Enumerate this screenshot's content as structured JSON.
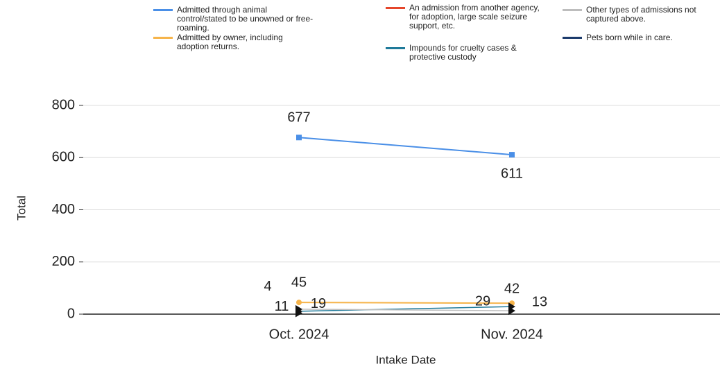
{
  "chart_data": {
    "type": "line",
    "x_label": "Intake Date",
    "y_label": "Total",
    "categories": [
      "Oct. 2024",
      "Nov. 2024"
    ],
    "series": [
      {
        "name": "Admitted through animal control/stated to be unowned or free-roaming.",
        "color": "#4a8fe7",
        "values": [
          677,
          611
        ]
      },
      {
        "name": "Admitted by owner, including adoption returns.",
        "color": "#f6b44a",
        "values": [
          45,
          42
        ]
      },
      {
        "name": "An admission from another agency, for adoption, large scale seizure support, etc.",
        "color": "#e5462b",
        "values": [
          4,
          null
        ]
      },
      {
        "name": "Impounds for cruelty cases & protective custody",
        "color": "#1f7a9a",
        "values": [
          11,
          29
        ]
      },
      {
        "name": "Other types of admissions not captured above.",
        "color": "#bdbdbd",
        "values": [
          19,
          13
        ]
      },
      {
        "name": "Pets born while in care.",
        "color": "#1b3a6b",
        "values": [
          null,
          null
        ]
      }
    ],
    "ylim": [
      0,
      800
    ],
    "yticks": [
      0,
      200,
      400,
      600,
      800
    ],
    "grid": true
  }
}
